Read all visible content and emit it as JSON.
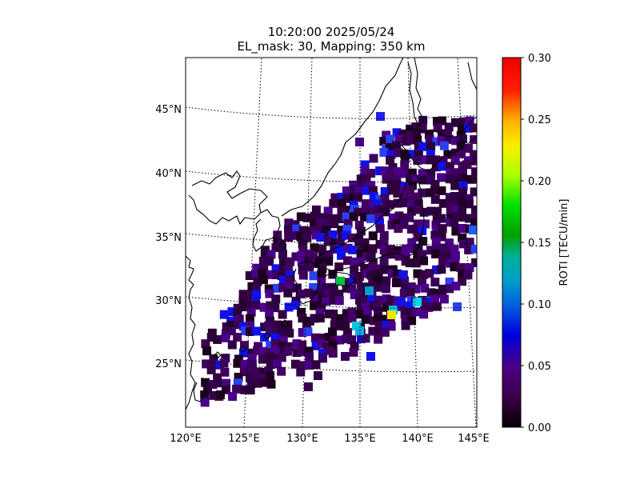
{
  "title": {
    "line1": "10:20:00 2025/05/24",
    "line2": "EL_mask: 30, Mapping: 350 km"
  },
  "map": {
    "lon_range": [
      120,
      145
    ],
    "lat_range": [
      20,
      49
    ],
    "x_ticks": [
      "120°E",
      "125°E",
      "130°E",
      "135°E",
      "140°E",
      "145°E"
    ],
    "y_ticks": [
      "25°N",
      "30°N",
      "35°N",
      "40°N",
      "45°N"
    ],
    "graticule": "dotted",
    "coastline_color": "#000000"
  },
  "colorbar": {
    "label": "ROTI [TECU/min]",
    "ticks": [
      "0.00",
      "0.05",
      "0.10",
      "0.15",
      "0.20",
      "0.25",
      "0.30"
    ],
    "range": [
      0.0,
      0.3
    ],
    "colormap": "nipy_spectral"
  }
}
